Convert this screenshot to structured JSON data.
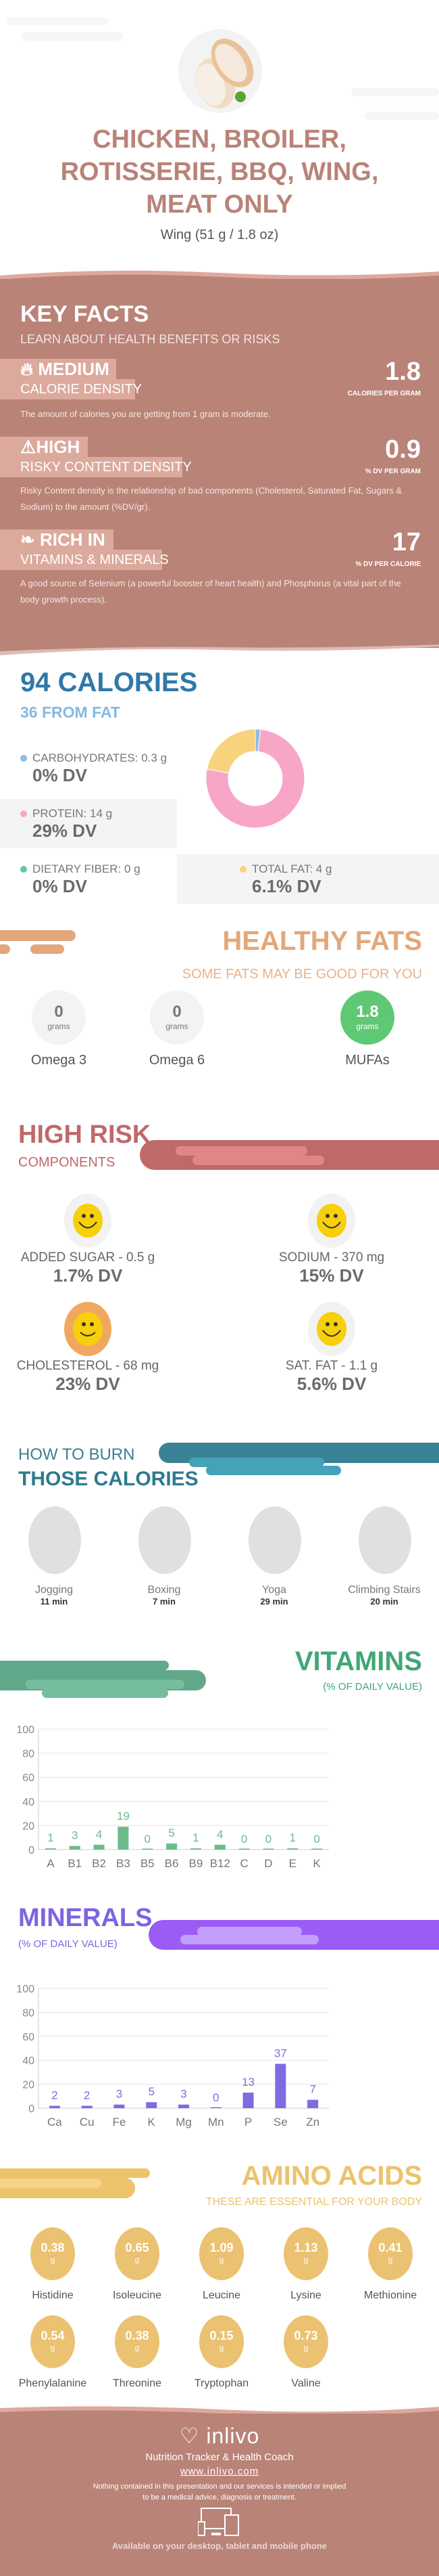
{
  "header": {
    "title_lines": [
      "CHICKEN, BROILER,",
      "ROTISSERIE, BBQ, WING,",
      "MEAT ONLY"
    ],
    "serving": "Wing (51 g / 1.8 oz)"
  },
  "key_facts": {
    "title": "KEY FACTS",
    "subtitle": "LEARN ABOUT HEALTH BENEFITS OR RISKS",
    "items": [
      {
        "level": "MEDIUM",
        "label": "CALORIE DENSITY",
        "value": "1.8",
        "unit": "CALORIES PER GRAM",
        "icon": "flame-icon",
        "desc": "The amount of calories you are getting from 1 gram is moderate."
      },
      {
        "level": "HIGH",
        "label": "RISKY CONTENT DENSITY",
        "value": "0.9",
        "unit": "% DV PER GRAM",
        "icon": "warning-icon",
        "desc": "Risky Content density is the relationship of bad components (Cholesterol, Saturated Fat, Sugars & Sodium) to the amount (%DV/gr)."
      },
      {
        "level": "RICH  IN",
        "label": "VITAMINS & MINERALS",
        "value": "17",
        "unit": "% DV PER CALORIE",
        "icon": "leaf-icon",
        "desc": "A good source of Selenium (a powerful booster of heart health) and Phosphorus (a vital part of the body growth process)."
      }
    ]
  },
  "calories": {
    "title": "94 CALORIES",
    "from_fat": "36 FROM FAT",
    "macros": [
      {
        "name": "CARBOHYDRATES: 0.3 g",
        "dv": "0% DV",
        "color": "#8fbde3",
        "grams": 0.3
      },
      {
        "name": "PROTEIN: 14 g",
        "dv": "29% DV",
        "color": "#f7a6c8",
        "grams": 14
      },
      {
        "name": "DIETARY FIBER: 0 g",
        "dv": "0% DV",
        "color": "#63c99a",
        "grams": 0
      },
      {
        "name": "TOTAL FAT: 4 g",
        "dv": "6.1% DV",
        "color": "#f7d37e",
        "grams": 4
      }
    ]
  },
  "healthy_fats": {
    "title": "HEALTHY FATS",
    "subtitle": "SOME FATS MAY BE GOOD FOR YOU",
    "unit": "grams",
    "items": [
      {
        "name": "Omega 3",
        "value": "0"
      },
      {
        "name": "Omega 6",
        "value": "0"
      },
      {
        "name": "MUFAs",
        "value": "1.8"
      }
    ]
  },
  "high_risk": {
    "title": "HIGH RISK",
    "subtitle": "COMPONENTS",
    "items": [
      {
        "name": "ADDED SUGAR - 0.5 g",
        "dv": "1.7% DV"
      },
      {
        "name": "SODIUM - 370 mg",
        "dv": "15% DV"
      },
      {
        "name": "CHOLESTEROL - 68 mg",
        "dv": "23% DV"
      },
      {
        "name": "SAT. FAT - 1.1 g",
        "dv": "5.6% DV"
      }
    ]
  },
  "burn": {
    "title1": "HOW TO BURN",
    "title2": "THOSE CALORIES",
    "items": [
      {
        "name": "Jogging",
        "time": "11 min"
      },
      {
        "name": "Boxing",
        "time": "7 min"
      },
      {
        "name": "Yoga",
        "time": "29 min"
      },
      {
        "name": "Climbing Stairs",
        "time": "20 min"
      }
    ]
  },
  "vitamins": {
    "title": "VITAMINS",
    "subtitle": "(% OF DAILY VALUE)"
  },
  "minerals": {
    "title": "MINERALS",
    "subtitle": "(% OF DAILY VALUE)"
  },
  "chart_data": [
    {
      "type": "bar",
      "title": "VITAMINS",
      "ylabel": "% of daily value",
      "ylim": [
        0,
        100
      ],
      "yticks": [
        "100",
        "80",
        "60",
        "40",
        "20",
        "0"
      ],
      "categories": [
        "A",
        "B1",
        "B2",
        "B3",
        "B5",
        "B6",
        "B9",
        "B12",
        "C",
        "D",
        "E",
        "K"
      ],
      "values": [
        1,
        3,
        4,
        19,
        0,
        5,
        1,
        4,
        0,
        0,
        1,
        0
      ],
      "color": "#6cbb8a"
    },
    {
      "type": "bar",
      "title": "MINERALS",
      "ylabel": "% of daily value",
      "ylim": [
        0,
        100
      ],
      "yticks": [
        "100",
        "80",
        "60",
        "40",
        "20",
        "0"
      ],
      "categories": [
        "Ca",
        "Cu",
        "Fe",
        "K",
        "Mg",
        "Mn",
        "P",
        "Se",
        "Zn"
      ],
      "values": [
        2,
        2,
        3,
        5,
        3,
        0,
        13,
        37,
        7
      ],
      "color": "#7e6be0"
    }
  ],
  "amino": {
    "title": "AMINO ACIDS",
    "subtitle": "THESE ARE ESSENTIAL FOR YOUR BODY",
    "unit": "g",
    "items": [
      {
        "name": "Histidine",
        "value": "0.38"
      },
      {
        "name": "Isoleucine",
        "value": "0.65"
      },
      {
        "name": "Leucine",
        "value": "1.09"
      },
      {
        "name": "Lysine",
        "value": "1.13"
      },
      {
        "name": "Methionine",
        "value": "0.41"
      },
      {
        "name": "Phenylalanine",
        "value": "0.54"
      },
      {
        "name": "Threonine",
        "value": "0.38"
      },
      {
        "name": "Tryptophan",
        "value": "0.15"
      },
      {
        "name": "Valine",
        "value": "0.73"
      }
    ]
  },
  "footer": {
    "brand": "inlivo",
    "tagline": "Nutrition Tracker & Health Coach",
    "url": "www.inlivo.com",
    "disclaimer": "Nothing contained in this presentation and our services is intended or implied to be a medical advice, diagnosis or treatment.",
    "available": "Available on your desktop, tablet and mobile phone"
  }
}
